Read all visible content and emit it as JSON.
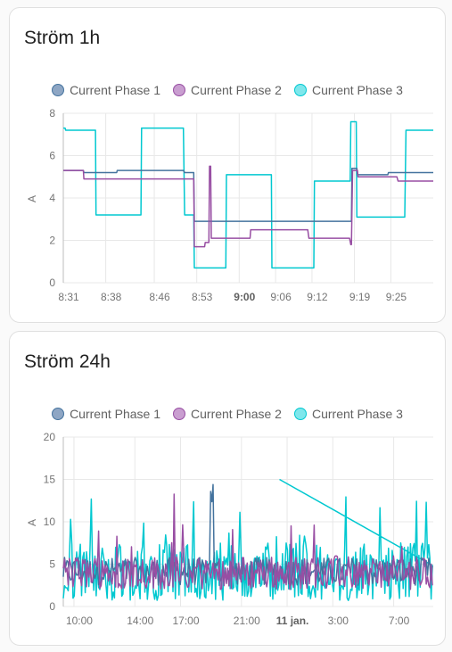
{
  "colors": {
    "phase1": "#44739e",
    "phase2": "#984ea3",
    "phase3": "#00c8d0",
    "phase1_fill": "#8ea6c4",
    "phase2_fill": "#c99ed0",
    "phase3_fill": "#7fe7ec"
  },
  "cards": [
    {
      "title": "Ström 1h",
      "chart_data": {
        "type": "line",
        "ylabel": "A",
        "ylim": [
          0,
          8
        ],
        "yticks": [
          0,
          2,
          4,
          6,
          8
        ],
        "xlim": [
          0,
          61
        ],
        "xticks": [
          {
            "label": "8:31",
            "x": 0,
            "bold": false
          },
          {
            "label": "8:38",
            "x": 7,
            "bold": false
          },
          {
            "label": "8:46",
            "x": 15,
            "bold": false
          },
          {
            "label": "8:53",
            "x": 22,
            "bold": false
          },
          {
            "label": "9:00",
            "x": 29,
            "bold": true
          },
          {
            "label": "9:06",
            "x": 35,
            "bold": false
          },
          {
            "label": "9:12",
            "x": 41,
            "bold": false
          },
          {
            "label": "9:19",
            "x": 48,
            "bold": false
          },
          {
            "label": "9:25",
            "x": 54,
            "bold": false
          }
        ],
        "series": [
          {
            "name": "Current Phase 1",
            "color_key": "phase1",
            "x": [
              -0.2,
              3.3,
              3.4,
              8.8,
              8.9,
              14.8,
              15.0,
              19.8,
              20.0,
              21.5,
              21.6,
              47.5,
              47.6,
              48.4,
              48.5,
              53.5,
              53.6,
              61
            ],
            "y": [
              5.3,
              5.3,
              5.2,
              5.2,
              5.3,
              5.3,
              5.3,
              5.3,
              5.2,
              5.2,
              2.9,
              2.9,
              5.4,
              5.4,
              5.1,
              5.1,
              5.2,
              5.2
            ]
          },
          {
            "name": "Current Phase 2",
            "color_key": "phase2",
            "x": [
              -0.2,
              3.3,
              3.4,
              21.5,
              21.6,
              23.3,
              23.4,
              24.0,
              24.1,
              24.3,
              24.4,
              30.8,
              30.9,
              40.3,
              40.5,
              47.2,
              47.4,
              47.5,
              47.7,
              48.5,
              48.6,
              55.0,
              55.2,
              61
            ],
            "y": [
              5.3,
              5.3,
              4.9,
              4.9,
              1.7,
              1.7,
              1.9,
              1.9,
              5.5,
              5.5,
              2.1,
              2.1,
              2.5,
              2.5,
              2.1,
              2.1,
              1.8,
              1.8,
              5.3,
              5.3,
              5.0,
              5.0,
              4.8,
              4.8
            ]
          },
          {
            "name": "Current Phase 3",
            "color_key": "phase3",
            "x": [
              -0.2,
              0.3,
              0.4,
              5.3,
              5.4,
              12.8,
              12.9,
              19.8,
              20.0,
              21.5,
              21.6,
              26.8,
              26.9,
              34.3,
              34.4,
              41.3,
              41.4,
              47.3,
              47.4,
              48.3,
              48.4,
              56.3,
              56.5,
              61
            ],
            "y": [
              7.3,
              7.3,
              7.2,
              7.2,
              3.2,
              3.2,
              7.3,
              7.3,
              3.2,
              3.2,
              0.7,
              0.7,
              5.1,
              5.1,
              0.7,
              0.7,
              4.8,
              4.8,
              7.6,
              7.6,
              3.1,
              3.1,
              7.2,
              7.2
            ]
          }
        ]
      }
    },
    {
      "title": "Ström 24h",
      "chart_data": {
        "type": "line",
        "ylabel": "A",
        "ylim": [
          0,
          20
        ],
        "yticks": [
          0,
          5,
          10,
          15,
          20
        ],
        "xlim": [
          9.3,
          33.6
        ],
        "xticks": [
          {
            "label": "10:00",
            "x": 10,
            "bold": false
          },
          {
            "label": "14:00",
            "x": 14,
            "bold": false
          },
          {
            "label": "17:00",
            "x": 17,
            "bold": false
          },
          {
            "label": "21:00",
            "x": 21,
            "bold": false
          },
          {
            "label": "11 jan.",
            "x": 24,
            "bold": true
          },
          {
            "label": "3:00",
            "x": 27,
            "bold": false
          },
          {
            "label": "7:00",
            "x": 31,
            "bold": false
          }
        ],
        "series": [
          {
            "name": "Current Phase 1",
            "color_key": "phase1",
            "x": [],
            "y": []
          },
          {
            "name": "Current Phase 2",
            "color_key": "phase2",
            "x": [],
            "y": []
          },
          {
            "name": "Current Phase 3",
            "color_key": "phase3",
            "x": [],
            "y": []
          }
        ]
      }
    }
  ]
}
